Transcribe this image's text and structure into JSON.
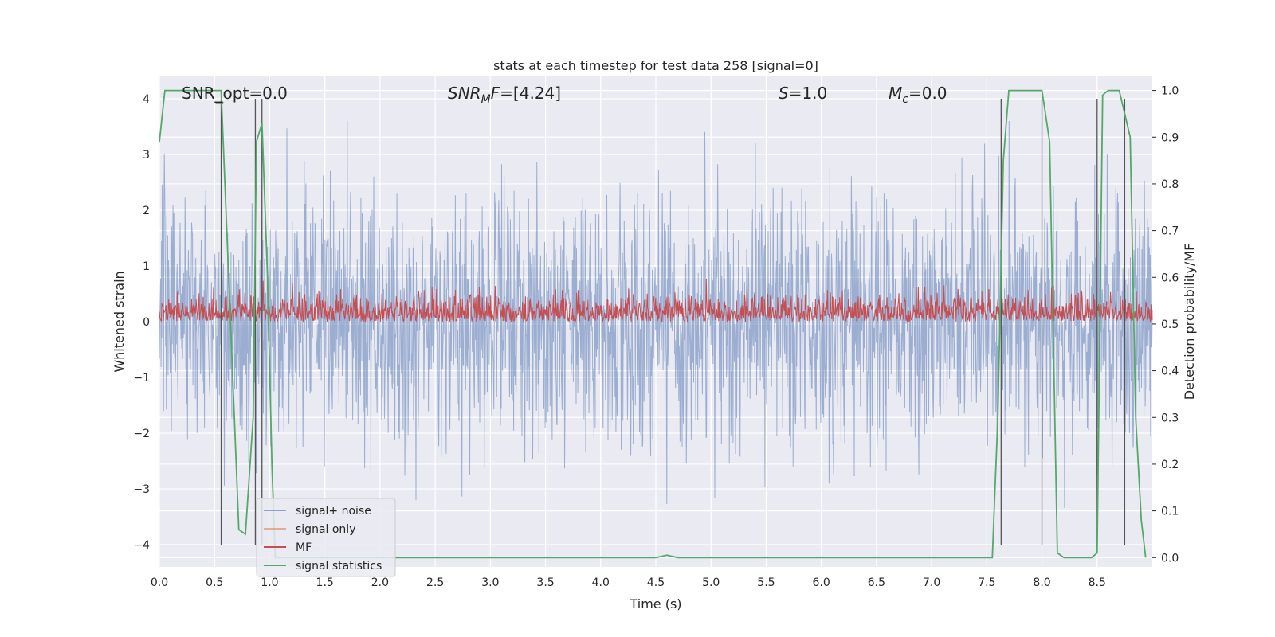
{
  "chart_data": {
    "type": "line",
    "title": "stats at each timestep for test data 258 [signal=0]",
    "xlabel": "Time (s)",
    "ylabel_left": "Whitened strain",
    "ylabel_right": "Detection probability/MF",
    "xlim": [
      0.0,
      9.0
    ],
    "ylim_left": [
      -4.4,
      4.4
    ],
    "ylim_right": [
      -0.02,
      1.03
    ],
    "x_ticks": [
      "0.0",
      "0.5",
      "1.0",
      "1.5",
      "2.0",
      "2.5",
      "3.0",
      "3.5",
      "4.0",
      "4.5",
      "5.0",
      "5.5",
      "6.0",
      "6.5",
      "7.0",
      "7.5",
      "8.0",
      "8.5"
    ],
    "y_ticks_left": [
      "−4",
      "−3",
      "−2",
      "−1",
      "0",
      "1",
      "2",
      "3",
      "4"
    ],
    "y_ticks_right": [
      "0.0",
      "0.1",
      "0.2",
      "0.3",
      "0.4",
      "0.5",
      "0.6",
      "0.7",
      "0.8",
      "0.9",
      "1.0"
    ],
    "grid": true,
    "annotations": {
      "snr_opt": "SNR_opt=0.0",
      "snr_mf": "=[4.24]",
      "snr_mf_sym": "SNR",
      "snr_mf_sub": "M",
      "snr_mf_f": "F",
      "s_sym": "S",
      "s_val": "=1.0",
      "mc_sym": "M",
      "mc_sub": "c",
      "mc_val": "=0.0"
    },
    "legend": {
      "placement": "lower-left",
      "entries": [
        {
          "label": "signal+ noise",
          "color": "#4c72b0"
        },
        {
          "label": "signal only",
          "color": "#dd8452"
        },
        {
          "label": "MF",
          "color": "#c44e52"
        },
        {
          "label": "signal statistics",
          "color": "#55a868"
        }
      ]
    },
    "series": [
      {
        "name": "signal+ noise",
        "axis": "left",
        "color": "#4c72b0",
        "description_range": [
          -3.4,
          3.6
        ]
      },
      {
        "name": "MF",
        "axis": "right",
        "color": "#c44e52",
        "description_range": [
          0.505,
          0.6
        ]
      },
      {
        "name": "signal statistics",
        "axis": "right",
        "color": "#55a868",
        "x": [
          0.0,
          0.05,
          0.1,
          0.5,
          0.56,
          0.62,
          0.68,
          0.72,
          0.78,
          0.85,
          0.88,
          0.93,
          0.98,
          1.02,
          1.05,
          4.5,
          4.6,
          4.7,
          7.55,
          7.6,
          7.65,
          7.7,
          7.9,
          8.0,
          8.07,
          8.14,
          8.2,
          8.45,
          8.5,
          8.55,
          8.6,
          8.7,
          8.8,
          8.85,
          8.9,
          8.94
        ],
        "y": [
          0.89,
          1.0,
          1.0,
          1.0,
          1.0,
          0.65,
          0.3,
          0.06,
          0.05,
          0.3,
          0.89,
          0.93,
          0.6,
          0.2,
          0.0,
          0.0,
          0.005,
          0.0,
          0.0,
          0.3,
          0.85,
          1.0,
          1.0,
          1.0,
          0.89,
          0.01,
          0.0,
          0.0,
          0.01,
          0.99,
          1.0,
          1.0,
          0.9,
          0.3,
          0.08,
          0.0
        ]
      }
    ],
    "vlines_x": [
      0.56,
      0.87,
      0.93,
      7.63,
      8.0,
      8.5,
      8.75
    ]
  },
  "colors": {
    "axes_bg": "#eaeaf2",
    "grid": "#ffffff",
    "noise": "#4c72b0",
    "mf": "#c44e52",
    "signal_only": "#dd8452",
    "stats": "#55a868",
    "vline": "#555555"
  }
}
